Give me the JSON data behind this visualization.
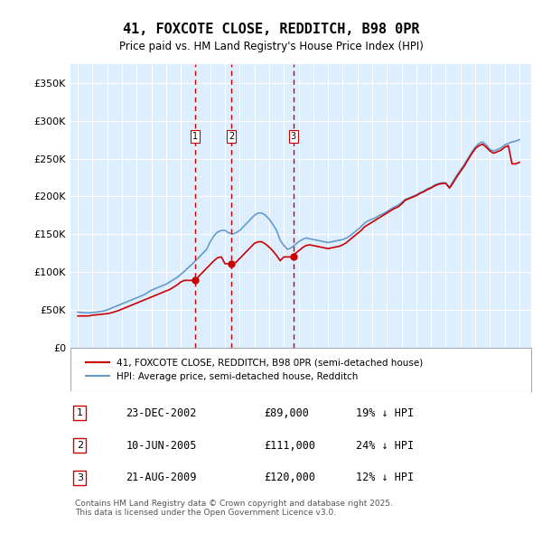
{
  "title": "41, FOXCOTE CLOSE, REDDITCH, B98 0PR",
  "subtitle": "Price paid vs. HM Land Registry's House Price Index (HPI)",
  "ylabel_ticks": [
    "£0",
    "£50K",
    "£100K",
    "£150K",
    "£200K",
    "£250K",
    "£300K",
    "£350K"
  ],
  "ytick_values": [
    0,
    50000,
    100000,
    150000,
    200000,
    250000,
    300000,
    350000
  ],
  "ylim": [
    0,
    375000
  ],
  "xlim_start": 1994.5,
  "xlim_end": 2025.8,
  "sales": [
    {
      "num": 1,
      "date": "23-DEC-2002",
      "price": 89000,
      "year": 2002.97,
      "hpi_pct": "19% ↓ HPI"
    },
    {
      "num": 2,
      "date": "10-JUN-2005",
      "price": 111000,
      "year": 2005.44,
      "hpi_pct": "24% ↓ HPI"
    },
    {
      "num": 3,
      "date": "21-AUG-2009",
      "price": 120000,
      "year": 2009.64,
      "hpi_pct": "12% ↓ HPI"
    }
  ],
  "legend_label_red": "41, FOXCOTE CLOSE, REDDITCH, B98 0PR (semi-detached house)",
  "legend_label_blue": "HPI: Average price, semi-detached house, Redditch",
  "footnote": "Contains HM Land Registry data © Crown copyright and database right 2025.\nThis data is licensed under the Open Government Licence v3.0.",
  "red_color": "#cc0000",
  "blue_color": "#6699cc",
  "background_color": "#ddeeff",
  "grid_color": "#ffffff",
  "hpi_data": {
    "years": [
      1995.0,
      1995.25,
      1995.5,
      1995.75,
      1996.0,
      1996.25,
      1996.5,
      1996.75,
      1997.0,
      1997.25,
      1997.5,
      1997.75,
      1998.0,
      1998.25,
      1998.5,
      1998.75,
      1999.0,
      1999.25,
      1999.5,
      1999.75,
      2000.0,
      2000.25,
      2000.5,
      2000.75,
      2001.0,
      2001.25,
      2001.5,
      2001.75,
      2002.0,
      2002.25,
      2002.5,
      2002.75,
      2003.0,
      2003.25,
      2003.5,
      2003.75,
      2004.0,
      2004.25,
      2004.5,
      2004.75,
      2005.0,
      2005.25,
      2005.5,
      2005.75,
      2006.0,
      2006.25,
      2006.5,
      2006.75,
      2007.0,
      2007.25,
      2007.5,
      2007.75,
      2008.0,
      2008.25,
      2008.5,
      2008.75,
      2009.0,
      2009.25,
      2009.5,
      2009.75,
      2010.0,
      2010.25,
      2010.5,
      2010.75,
      2011.0,
      2011.25,
      2011.5,
      2011.75,
      2012.0,
      2012.25,
      2012.5,
      2012.75,
      2013.0,
      2013.25,
      2013.5,
      2013.75,
      2014.0,
      2014.25,
      2014.5,
      2014.75,
      2015.0,
      2015.25,
      2015.5,
      2015.75,
      2016.0,
      2016.25,
      2016.5,
      2016.75,
      2017.0,
      2017.25,
      2017.5,
      2017.75,
      2018.0,
      2018.25,
      2018.5,
      2018.75,
      2019.0,
      2019.25,
      2019.5,
      2019.75,
      2020.0,
      2020.25,
      2020.5,
      2020.75,
      2021.0,
      2021.25,
      2021.5,
      2021.75,
      2022.0,
      2022.25,
      2022.5,
      2022.75,
      2023.0,
      2023.25,
      2023.5,
      2023.75,
      2024.0,
      2024.25,
      2024.5,
      2024.75,
      2025.0
    ],
    "values": [
      47000,
      46500,
      46200,
      46000,
      46500,
      47000,
      47800,
      48500,
      50000,
      52000,
      54000,
      56000,
      58000,
      60000,
      62000,
      64000,
      66000,
      68000,
      70000,
      73000,
      76000,
      78000,
      80000,
      82000,
      84000,
      87000,
      90000,
      93000,
      97000,
      101000,
      106000,
      110000,
      115000,
      120000,
      125000,
      130000,
      140000,
      148000,
      153000,
      155000,
      155000,
      152000,
      150000,
      152000,
      155000,
      160000,
      165000,
      170000,
      175000,
      178000,
      178000,
      175000,
      170000,
      163000,
      155000,
      142000,
      135000,
      130000,
      132000,
      136000,
      140000,
      143000,
      145000,
      144000,
      143000,
      142000,
      141000,
      140000,
      139000,
      140000,
      141000,
      142000,
      143000,
      145000,
      148000,
      152000,
      156000,
      160000,
      165000,
      168000,
      170000,
      172000,
      175000,
      177000,
      180000,
      183000,
      186000,
      188000,
      192000,
      196000,
      198000,
      200000,
      202000,
      205000,
      207000,
      210000,
      212000,
      215000,
      217000,
      218000,
      218000,
      212000,
      220000,
      228000,
      235000,
      242000,
      250000,
      258000,
      265000,
      270000,
      272000,
      268000,
      262000,
      260000,
      262000,
      264000,
      268000,
      270000,
      272000,
      273000,
      275000
    ]
  },
  "price_data": {
    "years": [
      1995.0,
      1995.25,
      1995.5,
      1995.75,
      1996.0,
      1996.25,
      1996.5,
      1996.75,
      1997.0,
      1997.25,
      1997.5,
      1997.75,
      1998.0,
      1998.25,
      1998.5,
      1998.75,
      1999.0,
      1999.25,
      1999.5,
      1999.75,
      2000.0,
      2000.25,
      2000.5,
      2000.75,
      2001.0,
      2001.25,
      2001.5,
      2001.75,
      2002.0,
      2002.25,
      2002.5,
      2002.75,
      2003.0,
      2003.25,
      2003.5,
      2003.75,
      2004.0,
      2004.25,
      2004.5,
      2004.75,
      2005.0,
      2005.25,
      2005.5,
      2005.75,
      2006.0,
      2006.25,
      2006.5,
      2006.75,
      2007.0,
      2007.25,
      2007.5,
      2007.75,
      2008.0,
      2008.25,
      2008.5,
      2008.75,
      2009.0,
      2009.25,
      2009.5,
      2009.75,
      2010.0,
      2010.25,
      2010.5,
      2010.75,
      2011.0,
      2011.25,
      2011.5,
      2011.75,
      2012.0,
      2012.25,
      2012.5,
      2012.75,
      2013.0,
      2013.25,
      2013.5,
      2013.75,
      2014.0,
      2014.25,
      2014.5,
      2014.75,
      2015.0,
      2015.25,
      2015.5,
      2015.75,
      2016.0,
      2016.25,
      2016.5,
      2016.75,
      2017.0,
      2017.25,
      2017.5,
      2017.75,
      2018.0,
      2018.25,
      2018.5,
      2018.75,
      2019.0,
      2019.25,
      2019.5,
      2019.75,
      2020.0,
      2020.25,
      2020.5,
      2020.75,
      2021.0,
      2021.25,
      2021.5,
      2021.75,
      2022.0,
      2022.25,
      2022.5,
      2022.75,
      2023.0,
      2023.25,
      2023.5,
      2023.75,
      2024.0,
      2024.25,
      2024.5,
      2024.75,
      2025.0
    ],
    "values": [
      42000,
      42000,
      42000,
      42000,
      43000,
      43500,
      44000,
      44500,
      45000,
      46000,
      47500,
      49000,
      51000,
      53000,
      55000,
      57000,
      59000,
      61000,
      63000,
      65000,
      67000,
      69000,
      71000,
      73000,
      75000,
      77000,
      80000,
      83000,
      87000,
      89000,
      89000,
      89000,
      89000,
      95000,
      100000,
      105000,
      110000,
      115000,
      119000,
      120000,
      111000,
      111000,
      111000,
      113000,
      118000,
      123000,
      128000,
      133000,
      138000,
      140000,
      140000,
      137000,
      133000,
      128000,
      122000,
      115000,
      120000,
      120000,
      120000,
      124000,
      128000,
      132000,
      135000,
      136000,
      135000,
      134000,
      133000,
      132000,
      131000,
      132000,
      133000,
      134000,
      136000,
      139000,
      143000,
      147000,
      151000,
      155000,
      160000,
      163000,
      166000,
      169000,
      172000,
      175000,
      178000,
      181000,
      184000,
      186000,
      190000,
      195000,
      197000,
      199000,
      201000,
      204000,
      206000,
      209000,
      211000,
      214000,
      216000,
      217000,
      217000,
      211000,
      218000,
      226000,
      233000,
      240000,
      248000,
      256000,
      263000,
      267000,
      269000,
      265000,
      260000,
      257000,
      259000,
      261000,
      265000,
      267000,
      243000,
      243000,
      245000
    ]
  }
}
